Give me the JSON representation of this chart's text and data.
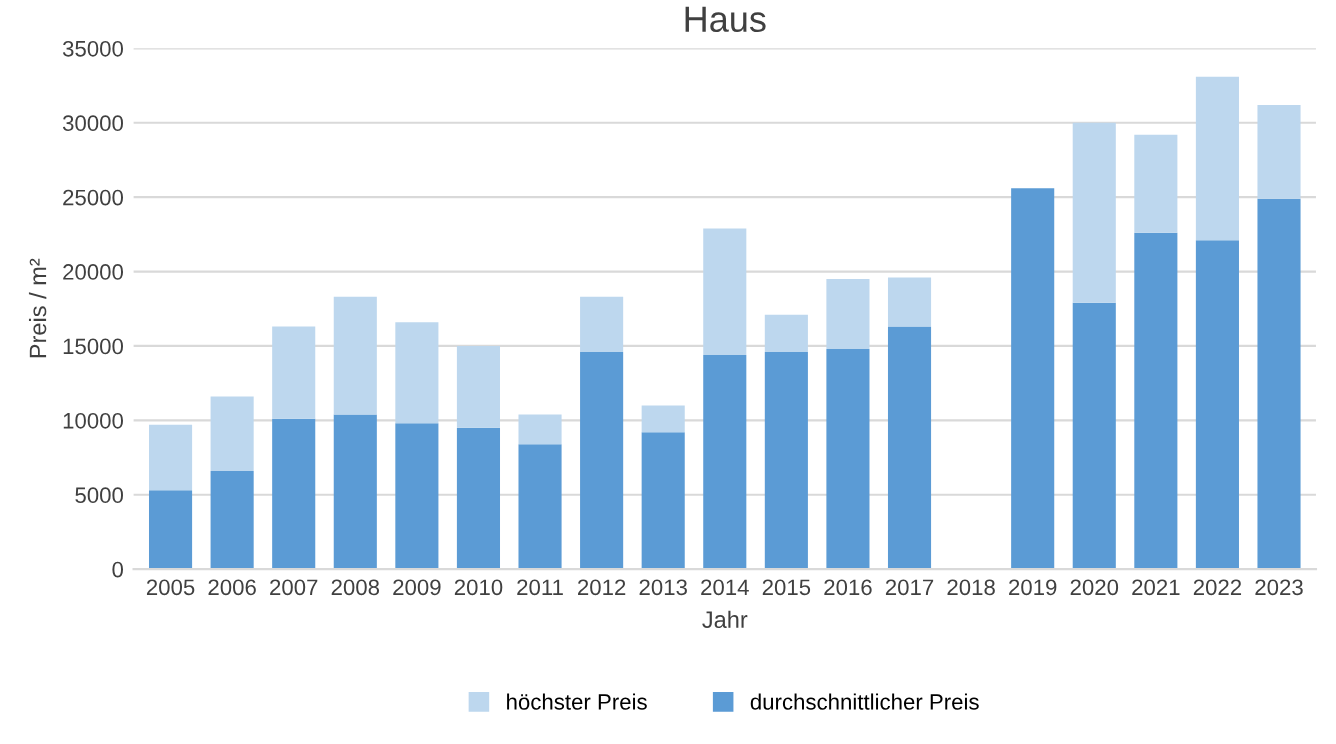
{
  "chart_data": {
    "type": "bar",
    "title": "Haus",
    "xlabel": "Jahr",
    "ylabel": "Preis / m²",
    "categories": [
      "2005",
      "2006",
      "2007",
      "2008",
      "2009",
      "2010",
      "2011",
      "2012",
      "2013",
      "2014",
      "2015",
      "2016",
      "2017",
      "2018",
      "2019",
      "2020",
      "2021",
      "2022",
      "2023"
    ],
    "stacked": true,
    "series": [
      {
        "name": "durchschnittlicher Preis",
        "color": "#5b9bd5",
        "values": [
          5300,
          6600,
          10100,
          10400,
          9800,
          9500,
          8400,
          14600,
          9200,
          14400,
          14600,
          14800,
          16300,
          null,
          25600,
          17900,
          22600,
          22100,
          24900
        ]
      },
      {
        "name": "höchster Preis",
        "color": "#bdd7ee",
        "values": [
          4400,
          5000,
          6200,
          7900,
          6800,
          5500,
          2000,
          3700,
          1800,
          8500,
          2500,
          4700,
          3300,
          null,
          null,
          12100,
          6600,
          11000,
          6300
        ]
      }
    ],
    "ylim": [
      0,
      35000
    ],
    "yticks": [
      0,
      5000,
      10000,
      15000,
      20000,
      25000,
      30000,
      35000
    ],
    "grid": "y",
    "legend": "bottom"
  }
}
